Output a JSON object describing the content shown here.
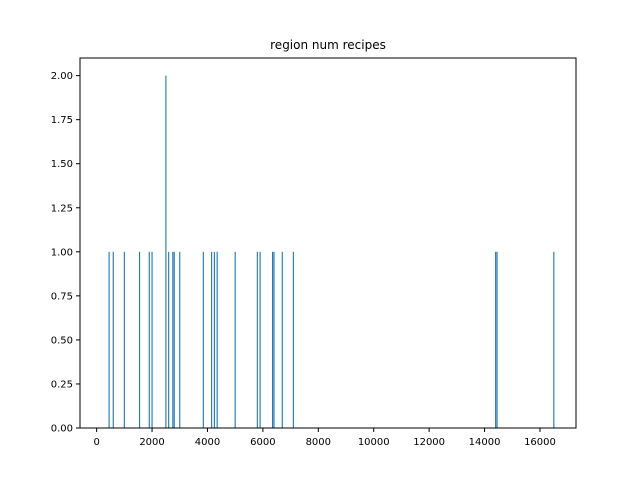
{
  "chart_data": {
    "type": "bar",
    "title": "region num recipes",
    "xlabel": "",
    "ylabel": "",
    "xlim": [
      -600,
      17300
    ],
    "ylim": [
      0,
      2.1
    ],
    "grid": false,
    "bar_color": "#1f77b4",
    "bar_width": 40,
    "x_ticks": [
      0,
      2000,
      4000,
      6000,
      8000,
      10000,
      12000,
      14000,
      16000
    ],
    "x_tick_labels": [
      "0",
      "2000",
      "4000",
      "6000",
      "8000",
      "10000",
      "12000",
      "14000",
      "16000"
    ],
    "y_ticks": [
      0,
      0.25,
      0.5,
      0.75,
      1.0,
      1.25,
      1.5,
      1.75,
      2.0
    ],
    "y_tick_labels": [
      "0.00",
      "0.25",
      "0.50",
      "0.75",
      "1.00",
      "1.25",
      "1.50",
      "1.75",
      "2.00"
    ],
    "points": [
      {
        "x": 450,
        "y": 1
      },
      {
        "x": 600,
        "y": 1
      },
      {
        "x": 1000,
        "y": 1
      },
      {
        "x": 1550,
        "y": 1
      },
      {
        "x": 1900,
        "y": 1
      },
      {
        "x": 2000,
        "y": 1
      },
      {
        "x": 2500,
        "y": 2
      },
      {
        "x": 2600,
        "y": 1
      },
      {
        "x": 2750,
        "y": 1
      },
      {
        "x": 2800,
        "y": 1
      },
      {
        "x": 3000,
        "y": 1
      },
      {
        "x": 3850,
        "y": 1
      },
      {
        "x": 4150,
        "y": 1
      },
      {
        "x": 4250,
        "y": 1
      },
      {
        "x": 4350,
        "y": 1
      },
      {
        "x": 5000,
        "y": 1
      },
      {
        "x": 5800,
        "y": 1
      },
      {
        "x": 5900,
        "y": 1
      },
      {
        "x": 6350,
        "y": 1
      },
      {
        "x": 6400,
        "y": 1
      },
      {
        "x": 6700,
        "y": 1
      },
      {
        "x": 7100,
        "y": 1
      },
      {
        "x": 14400,
        "y": 1
      },
      {
        "x": 14450,
        "y": 1
      },
      {
        "x": 16500,
        "y": 1
      }
    ]
  }
}
